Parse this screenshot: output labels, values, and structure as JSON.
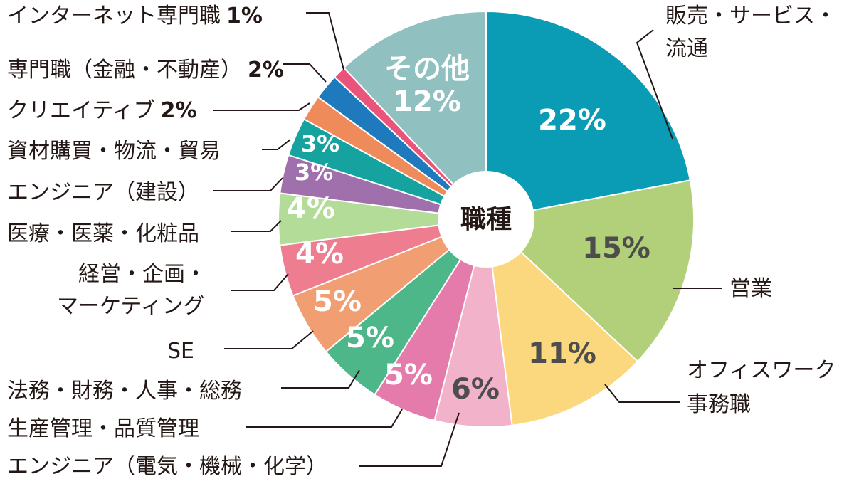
{
  "chart_data": {
    "type": "pie",
    "title": "職種",
    "slices": [
      {
        "label": "販売・サービス・流通",
        "value": 22,
        "value_label": "22%",
        "color": "#0a9bb5"
      },
      {
        "label": "営業",
        "value": 15,
        "value_label": "15%",
        "color": "#b2d07a"
      },
      {
        "label": "オフィスワーク事務職",
        "value": 11,
        "value_label": "11%",
        "color": "#fbd77e"
      },
      {
        "label": "エンジニア（電気・機械・化学）",
        "value": 6,
        "value_label": "6%",
        "color": "#f2b2ca"
      },
      {
        "label": "生産管理・品質管理",
        "value": 5,
        "value_label": "5%",
        "color": "#e57bab"
      },
      {
        "label": "法務・財務・人事・総務",
        "value": 5,
        "value_label": "5%",
        "color": "#4db78a"
      },
      {
        "label": "SE",
        "value": 5,
        "value_label": "5%",
        "color": "#f29e73"
      },
      {
        "label": "経営・企画・マーケティング",
        "value": 4,
        "value_label": "4%",
        "color": "#ee7d90"
      },
      {
        "label": "医療・医薬・化粧品",
        "value": 4,
        "value_label": "4%",
        "color": "#b3dc98"
      },
      {
        "label": "エンジニア（建設）",
        "value": 3,
        "value_label": "3%",
        "color": "#a070ad"
      },
      {
        "label": "資材購買・物流・貿易",
        "value": 3,
        "value_label": "3%",
        "color": "#16a3a0"
      },
      {
        "label": "クリエイティブ",
        "value": 2,
        "value_label": "2%",
        "color": "#ef8a5a"
      },
      {
        "label": "専門職（金融・不動産）",
        "value": 2,
        "value_label": "2%",
        "color": "#1f79bd"
      },
      {
        "label": "インターネット専門職",
        "value": 1,
        "value_label": "1%",
        "color": "#e9547b"
      },
      {
        "label": "その他",
        "value": 12,
        "value_label": "12%",
        "color": "#91c0c0"
      }
    ]
  }
}
